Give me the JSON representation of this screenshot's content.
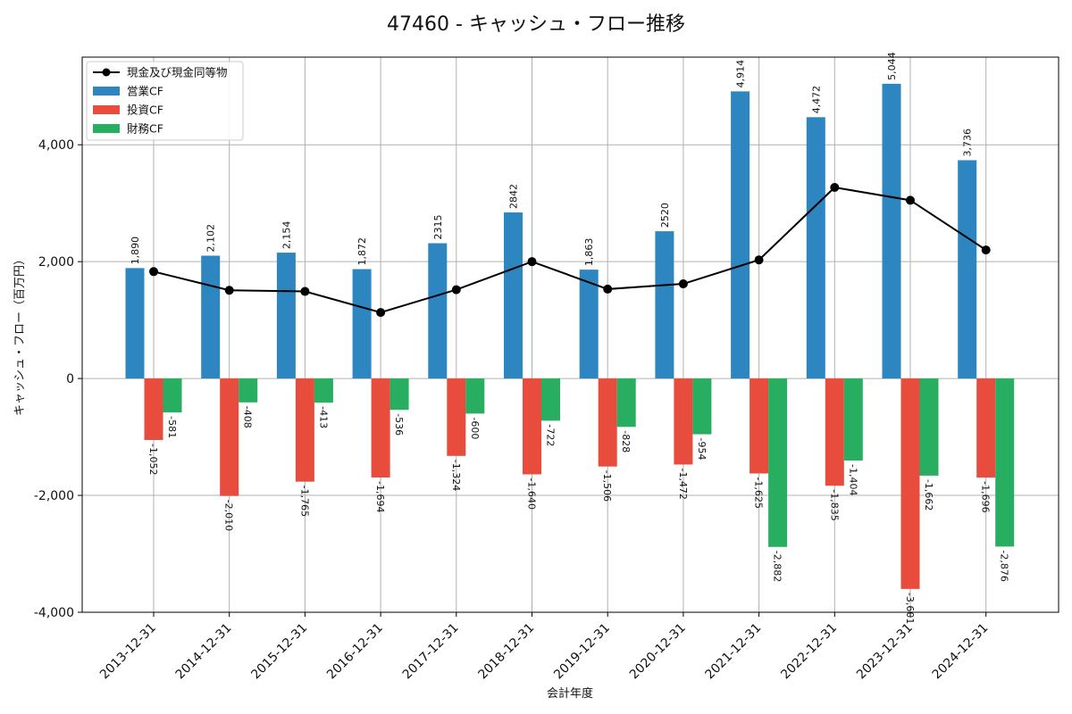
{
  "chart_data": {
    "type": "bar",
    "title": "47460 - キャッシュ・フロー推移",
    "xlabel": "会計年度",
    "ylabel": "キャッシュ・フロー（百万円）",
    "categories": [
      "2013-12-31",
      "2014-12-31",
      "2015-12-31",
      "2016-12-31",
      "2017-12-31",
      "2018-12-31",
      "2019-12-31",
      "2020-12-31",
      "2021-12-31",
      "2022-12-31",
      "2023-12-31",
      "2024-12-31"
    ],
    "ylim": [
      -4000,
      5500
    ],
    "yticks": [
      -4000,
      -2000,
      0,
      2000,
      4000
    ],
    "ytick_labels": [
      "-4,000",
      "-2,000",
      "0",
      "2,000",
      "4,000"
    ],
    "grid": true,
    "legend_position": "top-left",
    "series": [
      {
        "name": "営業CF",
        "type": "bar",
        "color": "#2e86c1",
        "values": [
          1890,
          2102,
          2154,
          1872,
          2315,
          2842,
          1863,
          2520,
          4914,
          4472,
          5044,
          3736
        ],
        "labels": [
          "1,890",
          "2,102",
          "2,154",
          "1,872",
          "2315",
          "2842",
          "1,863",
          "2520",
          "4,914",
          "4,472",
          "5,044",
          "3,736"
        ]
      },
      {
        "name": "投資CF",
        "type": "bar",
        "color": "#e74c3c",
        "values": [
          -1052,
          -2010,
          -1765,
          -1694,
          -1324,
          -1640,
          -1506,
          -1472,
          -1625,
          -1835,
          -3601,
          -1696
        ],
        "labels": [
          "-1,052",
          "-2,010",
          "-1,765",
          "-1,694",
          "-1,324",
          "-1,640",
          "-1,506",
          "-1,472",
          "-1,625",
          "-1,835",
          "-3,601",
          "-1,696"
        ]
      },
      {
        "name": "財務CF",
        "type": "bar",
        "color": "#27ae60",
        "values": [
          -581,
          -408,
          -413,
          -536,
          -600,
          -722,
          -828,
          -954,
          -2882,
          -1404,
          -1662,
          -2876
        ],
        "labels": [
          "-581",
          "-408",
          "-413",
          "-536",
          "-600",
          "-722",
          "-828",
          "-954",
          "-2,882",
          "-1,404",
          "-1,662",
          "-2,876"
        ]
      },
      {
        "name": "現金及び現金同等物",
        "type": "line",
        "color": "#000000",
        "values": [
          1830,
          1510,
          1490,
          1130,
          1520,
          2000,
          1530,
          1620,
          2030,
          3270,
          3050,
          2200
        ]
      }
    ]
  }
}
